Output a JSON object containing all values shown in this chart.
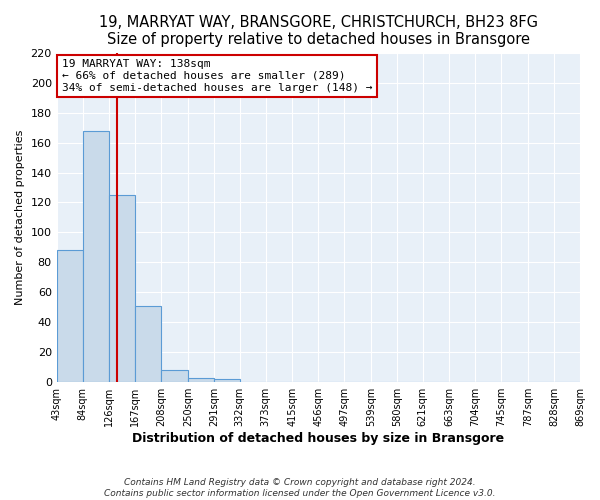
{
  "title": "19, MARRYAT WAY, BRANSGORE, CHRISTCHURCH, BH23 8FG",
  "subtitle": "Size of property relative to detached houses in Bransgore",
  "xlabel": "Distribution of detached houses by size in Bransgore",
  "ylabel": "Number of detached properties",
  "bar_edges": [
    43,
    84,
    126,
    167,
    208,
    250,
    291,
    332,
    373,
    415,
    456,
    497,
    539,
    580,
    621,
    663,
    704,
    745,
    787,
    828,
    869
  ],
  "bar_heights": [
    88,
    168,
    125,
    51,
    8,
    3,
    2,
    0,
    0,
    0,
    0,
    0,
    0,
    0,
    0,
    0,
    0,
    0,
    0,
    0
  ],
  "bar_color": "#c9daea",
  "bar_edge_color": "#5b9bd5",
  "property_line_x": 138,
  "property_line_color": "#cc0000",
  "ylim": [
    0,
    220
  ],
  "yticks": [
    0,
    20,
    40,
    60,
    80,
    100,
    120,
    140,
    160,
    180,
    200,
    220
  ],
  "annotation_line1": "19 MARRYAT WAY: 138sqm",
  "annotation_line2": "← 66% of detached houses are smaller (289)",
  "annotation_line3": "34% of semi-detached houses are larger (148) →",
  "annotation_box_color": "#ffffff",
  "annotation_box_edge_color": "#cc0000",
  "footer_text": "Contains HM Land Registry data © Crown copyright and database right 2024.\nContains public sector information licensed under the Open Government Licence v3.0.",
  "fig_background_color": "#ffffff",
  "plot_background_color": "#e8f0f8",
  "grid_color": "#ffffff",
  "title_fontsize": 10.5,
  "xlabel_fontsize": 9,
  "ylabel_fontsize": 8,
  "tick_fontsize": 7,
  "tick_labels": [
    "43sqm",
    "84sqm",
    "126sqm",
    "167sqm",
    "208sqm",
    "250sqm",
    "291sqm",
    "332sqm",
    "373sqm",
    "415sqm",
    "456sqm",
    "497sqm",
    "539sqm",
    "580sqm",
    "621sqm",
    "663sqm",
    "704sqm",
    "745sqm",
    "787sqm",
    "828sqm",
    "869sqm"
  ]
}
